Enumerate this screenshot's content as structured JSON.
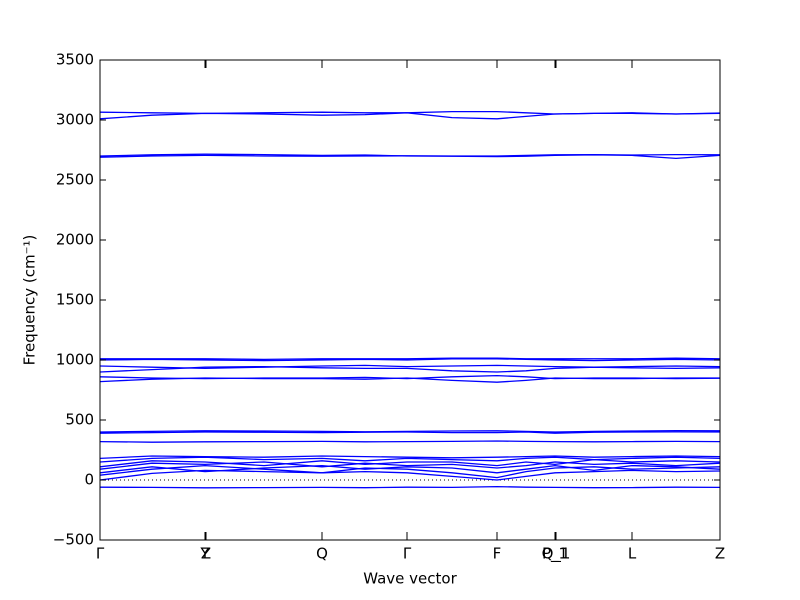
{
  "chart_data": {
    "type": "line",
    "xlabel": "Wave vector",
    "ylabel": "Frequency (cm⁻¹)",
    "x": [
      0,
      52,
      105,
      164,
      222,
      265,
      307,
      352,
      397,
      426,
      455,
      494,
      532,
      576,
      620
    ],
    "xlim": [
      0,
      620
    ],
    "xticks": [
      {
        "value": 0,
        "label": "Γ"
      },
      {
        "value": 105,
        "label": "Y"
      },
      {
        "value": 106,
        "label": "Z"
      },
      {
        "value": 222,
        "label": "Q"
      },
      {
        "value": 307,
        "label": "Γ"
      },
      {
        "value": 397,
        "label": "F"
      },
      {
        "value": 455,
        "label": "P_1"
      },
      {
        "value": 456,
        "label": "Q_1"
      },
      {
        "value": 532,
        "label": "L"
      },
      {
        "value": 620,
        "label": "Z"
      }
    ],
    "ylim": [
      -500,
      3500
    ],
    "yticks": [
      {
        "value": -500,
        "label": "−500"
      },
      0,
      500,
      1000,
      1500,
      2000,
      2500,
      3000,
      3500
    ],
    "series": [
      {
        "color": "#0000ff",
        "values": [
          -60,
          -62,
          -65,
          -63,
          -62,
          -64,
          -60,
          -62,
          -55,
          -60,
          -62,
          -64,
          -63,
          -60,
          -62
        ]
      },
      {
        "color": "#0000ff",
        "values": [
          0,
          55,
          80,
          70,
          60,
          70,
          60,
          30,
          0,
          30,
          60,
          70,
          80,
          70,
          75
        ]
      },
      {
        "color": "#0000ff",
        "values": [
          40,
          90,
          120,
          90,
          60,
          100,
          90,
          60,
          20,
          70,
          100,
          110,
          90,
          100,
          110
        ]
      },
      {
        "color": "#0000ff",
        "values": [
          60,
          110,
          70,
          100,
          120,
          90,
          110,
          100,
          60,
          90,
          120,
          80,
          120,
          110,
          90
        ]
      },
      {
        "color": "#0000ff",
        "values": [
          90,
          140,
          130,
          150,
          110,
          140,
          120,
          130,
          100,
          120,
          150,
          130,
          140,
          120,
          140
        ]
      },
      {
        "color": "#0000ff",
        "values": [
          110,
          160,
          150,
          120,
          160,
          130,
          150,
          150,
          120,
          150,
          130,
          170,
          150,
          160,
          150
        ]
      },
      {
        "color": "#0000ff",
        "values": [
          150,
          180,
          190,
          170,
          180,
          160,
          180,
          170,
          160,
          180,
          190,
          170,
          180,
          190,
          180
        ]
      },
      {
        "color": "#0000ff",
        "values": [
          180,
          200,
          195,
          190,
          200,
          195,
          190,
          185,
          190,
          195,
          200,
          190,
          195,
          200,
          195
        ]
      },
      {
        "color": "#0000ff",
        "values": [
          320,
          315,
          318,
          320,
          322,
          318,
          320,
          322,
          325,
          322,
          320,
          318,
          320,
          322,
          320
        ]
      },
      {
        "color": "#0000ff",
        "values": [
          400,
          405,
          410,
          408,
          405,
          402,
          405,
          408,
          410,
          405,
          400,
          405,
          408,
          412,
          410
        ]
      },
      {
        "color": "#0000ff",
        "values": [
          390,
          395,
          400,
          398,
          395,
          398,
          400,
          395,
          395,
          400,
          390,
          398,
          400,
          402,
          400
        ]
      },
      {
        "color": "#0000ff",
        "values": [
          820,
          840,
          850,
          845,
          845,
          840,
          850,
          830,
          815,
          830,
          850,
          845,
          845,
          850,
          850
        ]
      },
      {
        "color": "#0000ff",
        "values": [
          860,
          850,
          845,
          850,
          850,
          855,
          845,
          860,
          870,
          860,
          845,
          850,
          850,
          845,
          848
        ]
      },
      {
        "color": "#0000ff",
        "values": [
          900,
          920,
          940,
          945,
          935,
          930,
          930,
          910,
          900,
          910,
          930,
          940,
          935,
          930,
          935
        ]
      },
      {
        "color": "#0000ff",
        "values": [
          950,
          940,
          930,
          940,
          950,
          955,
          945,
          950,
          955,
          950,
          945,
          940,
          945,
          950,
          945
        ]
      },
      {
        "color": "#0000ff",
        "values": [
          1000,
          1005,
          1000,
          995,
          1000,
          1005,
          1000,
          1010,
          1010,
          1005,
          1000,
          995,
          1000,
          1005,
          1000
        ]
      },
      {
        "color": "#0000ff",
        "values": [
          1010,
          1010,
          1010,
          1005,
          1010,
          1010,
          1010,
          1015,
          1015,
          1010,
          1010,
          1010,
          1010,
          1015,
          1010
        ]
      },
      {
        "color": "#0000ff",
        "values": [
          2690,
          2700,
          2705,
          2700,
          2698,
          2700,
          2702,
          2698,
          2695,
          2698,
          2705,
          2710,
          2705,
          2680,
          2705
        ]
      },
      {
        "color": "#0000ff",
        "values": [
          2700,
          2710,
          2715,
          2712,
          2705,
          2708,
          2700,
          2700,
          2700,
          2705,
          2710,
          2712,
          2708,
          2712,
          2710
        ]
      },
      {
        "color": "#0000ff",
        "values": [
          3010,
          3040,
          3055,
          3050,
          3040,
          3045,
          3060,
          3020,
          3010,
          3030,
          3050,
          3055,
          3055,
          3050,
          3055
        ]
      },
      {
        "color": "#0000ff",
        "values": [
          3065,
          3060,
          3055,
          3060,
          3065,
          3060,
          3060,
          3070,
          3070,
          3060,
          3050,
          3055,
          3060,
          3050,
          3058
        ]
      }
    ]
  }
}
